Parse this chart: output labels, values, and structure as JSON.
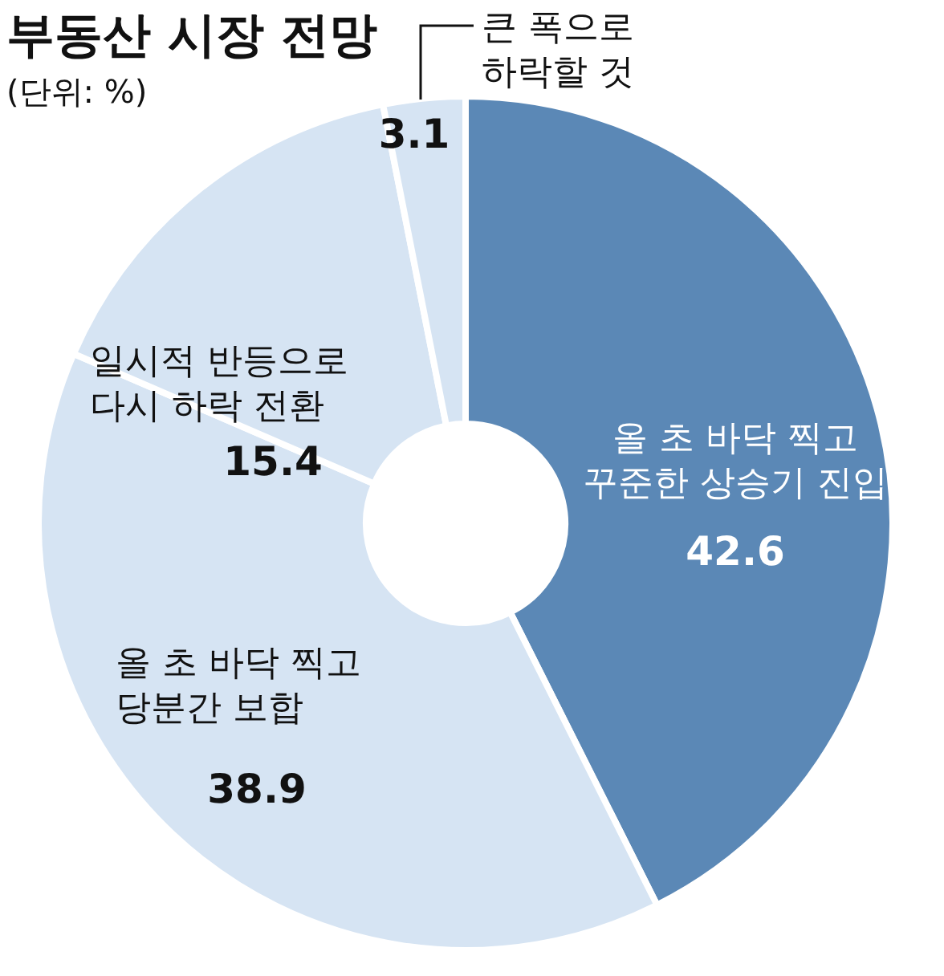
{
  "chart_data": {
    "type": "donut",
    "title": "부동산 시장 전망",
    "subtitle": "(단위: %)",
    "categories": [
      "올 초 바닥 찍고\n꾸준한 상승기 진입",
      "올 초 바닥 찍고\n당분간 보합",
      "일시적 반등으로\n다시 하락 전환",
      "큰 폭으로\n하락할 것"
    ],
    "values": [
      42.6,
      38.9,
      15.4,
      3.1
    ],
    "colors": [
      "#5b88b6",
      "#d6e4f3",
      "#d6e4f3",
      "#d6e4f3"
    ],
    "data_labels": true
  }
}
